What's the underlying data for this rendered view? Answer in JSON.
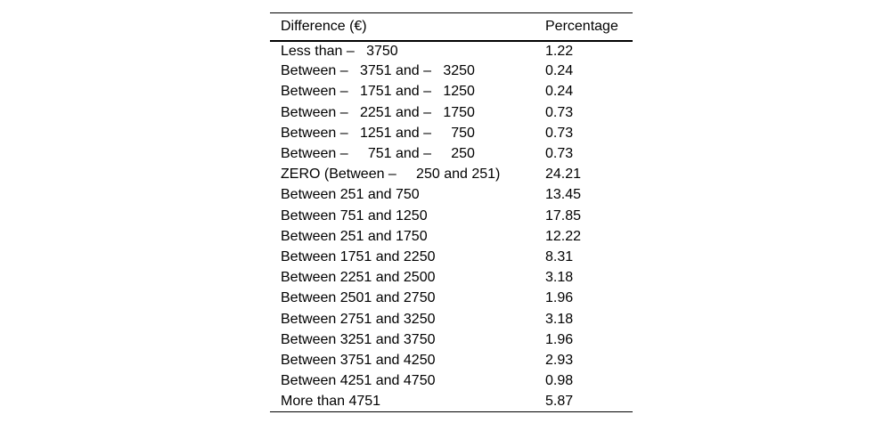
{
  "page": {
    "background_color": "#ffffff",
    "text_color": "#000000",
    "rule_color": "#000000"
  },
  "table": {
    "columns": [
      {
        "label": "Difference (€)"
      },
      {
        "label": "Percentage"
      }
    ],
    "rows": [
      {
        "difference": "Less than –   3750",
        "percentage": "1.22"
      },
      {
        "difference": "Between –   3751 and –   3250",
        "percentage": "0.24"
      },
      {
        "difference": "Between –   1751 and –   1250",
        "percentage": "0.24"
      },
      {
        "difference": "Between –   2251 and –   1750",
        "percentage": "0.73"
      },
      {
        "difference": "Between –   1251 and –     750",
        "percentage": "0.73"
      },
      {
        "difference": "Between –     751 and –     250",
        "percentage": "0.73"
      },
      {
        "difference": "ZERO (Between –     250 and 251)",
        "percentage": "24.21"
      },
      {
        "difference": "Between 251 and 750",
        "percentage": "13.45"
      },
      {
        "difference": "Between 751 and 1250",
        "percentage": "17.85"
      },
      {
        "difference": "Between 251 and 1750",
        "percentage": "12.22"
      },
      {
        "difference": "Between 1751 and 2250",
        "percentage": "8.31"
      },
      {
        "difference": "Between 2251 and 2500",
        "percentage": "3.18"
      },
      {
        "difference": "Between 2501 and 2750",
        "percentage": "1.96"
      },
      {
        "difference": "Between 2751 and 3250",
        "percentage": "3.18"
      },
      {
        "difference": "Between 3251 and 3750",
        "percentage": "1.96"
      },
      {
        "difference": "Between 3751 and 4250",
        "percentage": "2.93"
      },
      {
        "difference": "Between 4251 and 4750",
        "percentage": "0.98"
      },
      {
        "difference": "More than 4751",
        "percentage": "5.87"
      }
    ]
  }
}
